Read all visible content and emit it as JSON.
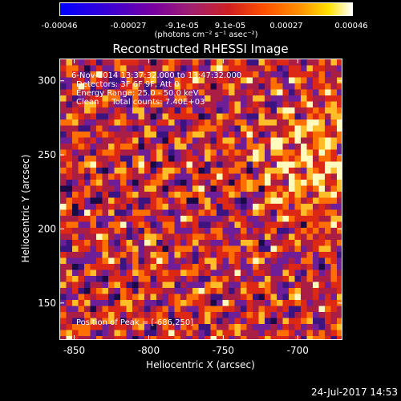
{
  "colorbar": {
    "ticks": [
      "-0.00046",
      "-0.00027",
      "-9.1e-05",
      "9.1e-05",
      "0.00027",
      "0.00046"
    ],
    "tick_values": [
      -0.00046,
      -0.00027,
      -9.1e-05,
      9.1e-05,
      0.00027,
      0.00046
    ],
    "range": [
      -0.00046,
      0.00046
    ],
    "units": "(photons cm⁻² s⁻¹ asec⁻²)",
    "colors": [
      "#0000ff",
      "#7a00a0",
      "#d02020",
      "#ff9000",
      "#ffffff"
    ]
  },
  "annotations": {
    "line1": "6-Nov-2014 13:37:32.000 to 13:47:32.000",
    "line2": "Detectors: 3F 6F 9F, Att 0",
    "line3": "Energy Range: 25.0 - 50.0 keV",
    "line4": "Clean     Total counts: 7.40E+03",
    "peak": "Position of Peak = [-686,250]"
  },
  "timestamp": "24-Jul-2017 14:53",
  "chart_data": {
    "type": "heatmap",
    "title": "Reconstructed RHESSI Image",
    "xlabel": "Heliocentric X (arcsec)",
    "ylabel": "Heliocentric Y (arcsec)",
    "xlim": [
      -860,
      -670
    ],
    "ylim": [
      125,
      315
    ],
    "xticks": [
      -850,
      -800,
      -750,
      -700
    ],
    "yticks": [
      150,
      200,
      250,
      300
    ],
    "xtick_labels": [
      "-850",
      "-800",
      "-750",
      "-700"
    ],
    "ytick_labels": [
      "150",
      "200",
      "250",
      "300"
    ],
    "grid": false,
    "peak": [
      -686,
      250
    ]
  }
}
